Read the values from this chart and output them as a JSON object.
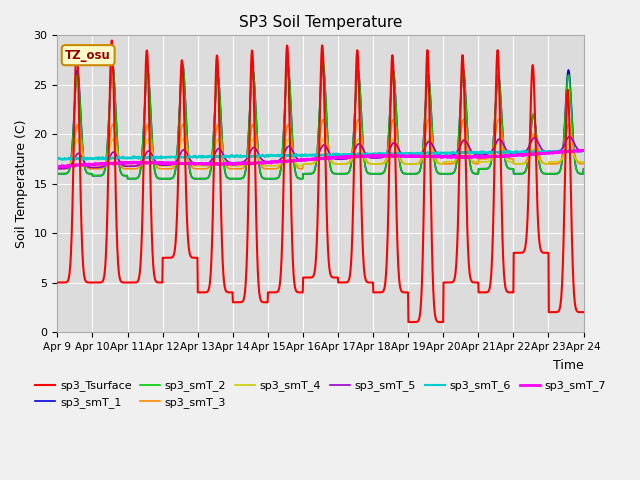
{
  "title": "SP3 Soil Temperature",
  "xlabel": "Time",
  "ylabel": "Soil Temperature (C)",
  "ylim": [
    0,
    30
  ],
  "tz_label": "TZ_osu",
  "bg_color": "#dcdcdc",
  "fig_bg_color": "#f0f0f0",
  "series_order": [
    "sp3_Tsurface",
    "sp3_smT_1",
    "sp3_smT_2",
    "sp3_smT_3",
    "sp3_smT_4",
    "sp3_smT_5",
    "sp3_smT_6",
    "sp3_smT_7"
  ],
  "series_colors": [
    "#ff0000",
    "#0000dd",
    "#00cc00",
    "#ff8800",
    "#cccc00",
    "#9900cc",
    "#00cccc",
    "#ff00ff"
  ],
  "series_lw": [
    1.5,
    1.2,
    1.2,
    1.2,
    1.2,
    1.2,
    1.5,
    2.0
  ],
  "xtick_labels": [
    "Apr 9",
    "Apr 10",
    "Apr 11",
    "Apr 12",
    "Apr 13",
    "Apr 14",
    "Apr 15",
    "Apr 16",
    "Apr 17",
    "Apr 18",
    "Apr 19",
    "Apr 20",
    "Apr 21",
    "Apr 22",
    "Apr 23",
    "Apr 24"
  ],
  "ytick_positions": [
    0,
    5,
    10,
    15,
    20,
    25,
    30
  ],
  "figsize": [
    6.4,
    4.8
  ],
  "dpi": 100
}
